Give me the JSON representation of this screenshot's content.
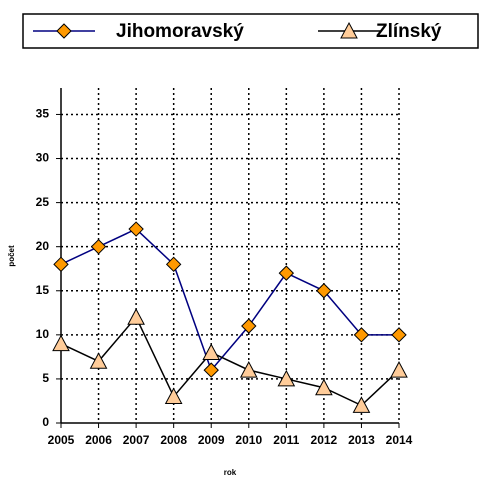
{
  "chart_data": {
    "type": "line",
    "x_label": "rok",
    "y_label": "počet",
    "x": [
      2005,
      2006,
      2007,
      2008,
      2009,
      2010,
      2011,
      2012,
      2013,
      2014
    ],
    "xlim": [
      2005,
      2014
    ],
    "xticks": [
      2005,
      2006,
      2007,
      2008,
      2009,
      2010,
      2011,
      2012,
      2013,
      2014
    ],
    "ylim": [
      0,
      38
    ],
    "yticks": [
      0,
      5,
      10,
      15,
      20,
      25,
      30,
      35
    ],
    "grid": true,
    "legend_position": "top",
    "series": [
      {
        "name": "Jihomoravský",
        "color": "#000080",
        "marker_color": "#ff9900",
        "marker": "diamond",
        "values": [
          18,
          20,
          22,
          18,
          6,
          11,
          17,
          15,
          10,
          10
        ]
      },
      {
        "name": "Zlínský",
        "color": "#000000",
        "marker_color": "#ffcc99",
        "marker": "triangle",
        "values": [
          9,
          7,
          12,
          3,
          8,
          6,
          5,
          4,
          2,
          6
        ]
      }
    ]
  }
}
